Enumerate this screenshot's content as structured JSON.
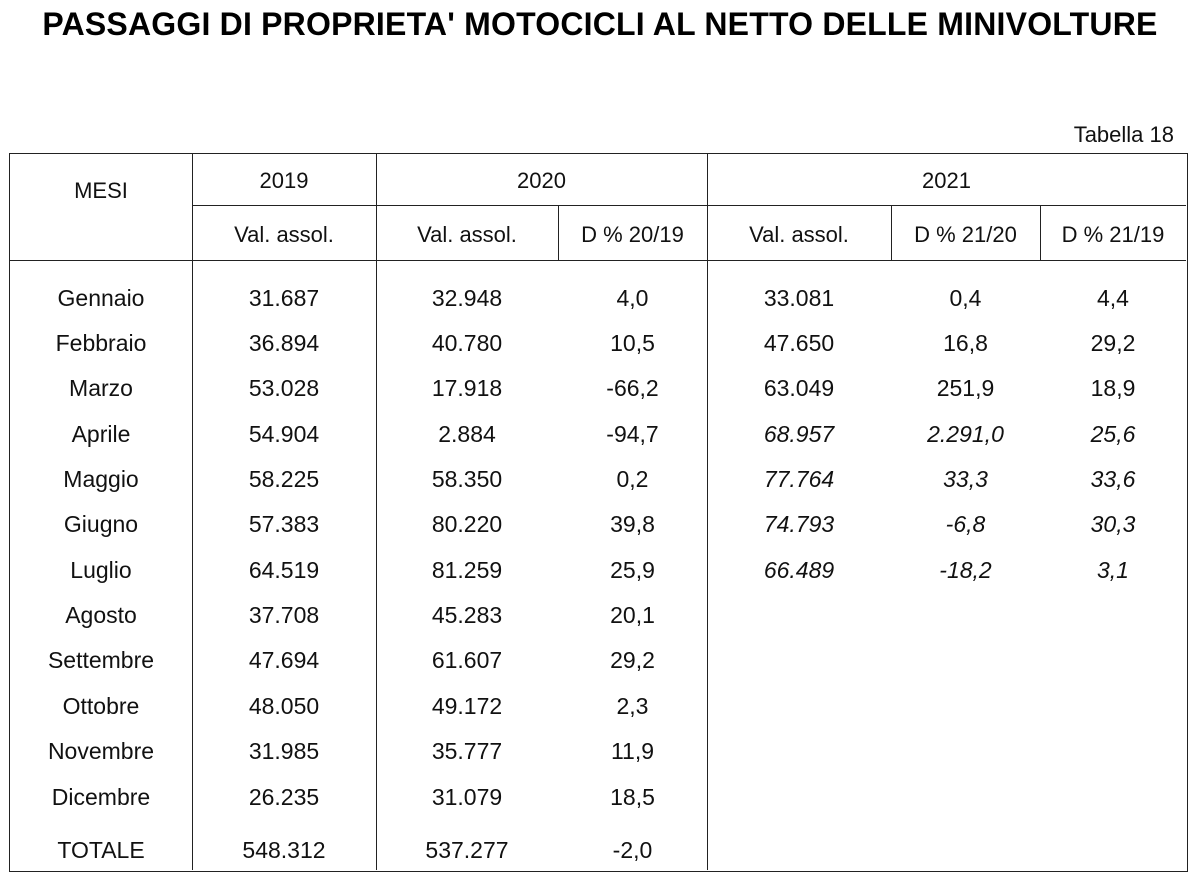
{
  "title": "PASSAGGI DI PROPRIETA' MOTOCICLI AL NETTO DELLE MINIVOLTURE",
  "table_label": "Tabella 18",
  "headers": {
    "mesi": "MESI",
    "y2019": "2019",
    "y2020": "2020",
    "y2021": "2021",
    "sub": {
      "c2019": "Val. assol.",
      "c2020": "Val. assol.",
      "d2019": "D % 20/19",
      "c2021": "Val. assol.",
      "d2120": "D % 21/20",
      "d2119": "D % 21/19"
    }
  },
  "rows": [
    {
      "mese": "Gennaio",
      "v2019": "31.687",
      "v2020": "32.948",
      "d20": "4,0",
      "v2021": "33.081",
      "d2120": "0,4",
      "d2119": "4,4"
    },
    {
      "mese": "Febbraio",
      "v2019": "36.894",
      "v2020": "40.780",
      "d20": "10,5",
      "v2021": "47.650",
      "d2120": "16,8",
      "d2119": "29,2"
    },
    {
      "mese": "Marzo",
      "v2019": "53.028",
      "v2020": "17.918",
      "d20": "-66,2",
      "v2021": "63.049",
      "d2120": "251,9",
      "d2119": "18,9"
    },
    {
      "mese": "Aprile",
      "v2019": "54.904",
      "v2020": "2.884",
      "d20": "-94,7",
      "v2021": "68.957",
      "d2120": "2.291,0",
      "d2119": "25,6"
    },
    {
      "mese": "Maggio",
      "v2019": "58.225",
      "v2020": "58.350",
      "d20": "0,2",
      "v2021": "77.764",
      "d2120": "33,3",
      "d2119": "33,6"
    },
    {
      "mese": "Giugno",
      "v2019": "57.383",
      "v2020": "80.220",
      "d20": "39,8",
      "v2021": "74.793",
      "d2120": "-6,8",
      "d2119": "30,3"
    },
    {
      "mese": "Luglio",
      "v2019": "64.519",
      "v2020": "81.259",
      "d20": "25,9",
      "v2021": "66.489",
      "d2120": "-18,2",
      "d2119": "3,1"
    },
    {
      "mese": "Agosto",
      "v2019": "37.708",
      "v2020": "45.283",
      "d20": "20,1",
      "v2021": "",
      "d2120": "",
      "d2119": ""
    },
    {
      "mese": "Settembre",
      "v2019": "47.694",
      "v2020": "61.607",
      "d20": "29,2",
      "v2021": "",
      "d2120": "",
      "d2119": ""
    },
    {
      "mese": "Ottobre",
      "v2019": "48.050",
      "v2020": "49.172",
      "d20": "2,3",
      "v2021": "",
      "d2120": "",
      "d2119": ""
    },
    {
      "mese": "Novembre",
      "v2019": "31.985",
      "v2020": "35.777",
      "d20": "11,9",
      "v2021": "",
      "d2120": "",
      "d2119": ""
    },
    {
      "mese": "Dicembre",
      "v2019": "26.235",
      "v2020": "31.079",
      "d20": "18,5",
      "v2021": "",
      "d2120": "",
      "d2119": ""
    }
  ],
  "totale": {
    "mese": "TOTALE",
    "v2019": "548.312",
    "v2020": "537.277",
    "d20": "-2,0"
  }
}
